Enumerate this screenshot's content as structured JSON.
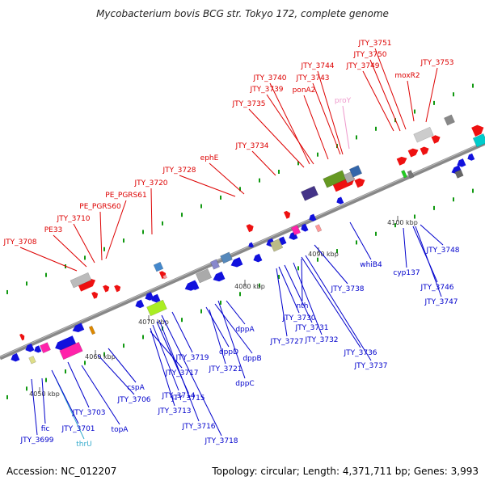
{
  "title": "Mycobacterium bovis BCG str. Tokyo 172, complete genome",
  "footer": {
    "accession": "Accession: NC_012207",
    "summary": "Topology: circular; Length: 4,371,711 bp; Genes: 3,993"
  },
  "colors": {
    "forward_label": "#dd0000",
    "reverse_label": "#0000cc",
    "rna_forward": "#ee99cc",
    "rna_reverse": "#33aacc",
    "backbone": "#888888",
    "tick_minor": "#119911"
  },
  "scale_labels": [
    "4050 kbp",
    "4060 kbp",
    "4070 kbp",
    "4080 kbp",
    "4090 kbp",
    "4100 kbp"
  ],
  "forward_genes": [
    "JTY_3708",
    "PE33",
    "JTY_3710",
    "PE_PGRS60",
    "PE_PGRS61",
    "JTY_3720",
    "JTY_3728",
    "ephE",
    "JTY_3734",
    "JTY_3735",
    "JTY_3739",
    "JTY_3740",
    "ponA2",
    "JTY_3743",
    "JTY_3744",
    "proY",
    "JTY_3749",
    "JTY_3750",
    "JTY_3751",
    "moxR2",
    "JTY_3753"
  ],
  "reverse_genes": [
    "JTY_3699",
    "fic",
    "thrU",
    "JTY_3701",
    "JTY_3703",
    "topA",
    "JTY_3706",
    "cspA",
    "JTY_3713",
    "JTY_3714",
    "JTY_3715",
    "JTY_3716",
    "JTY_3717",
    "JTY_3718",
    "JTY_3719",
    "JTY_3721",
    "dppD",
    "dppB",
    "dppC",
    "dppA",
    "JTY_3727",
    "JTY_3730",
    "JTY_3731",
    "JTY_3732",
    "nth",
    "JTY_3736",
    "JTY_3737",
    "JTY_3738",
    "whiB4",
    "cyp137",
    "JTY_3746",
    "JTY_3747",
    "JTY_3748"
  ]
}
